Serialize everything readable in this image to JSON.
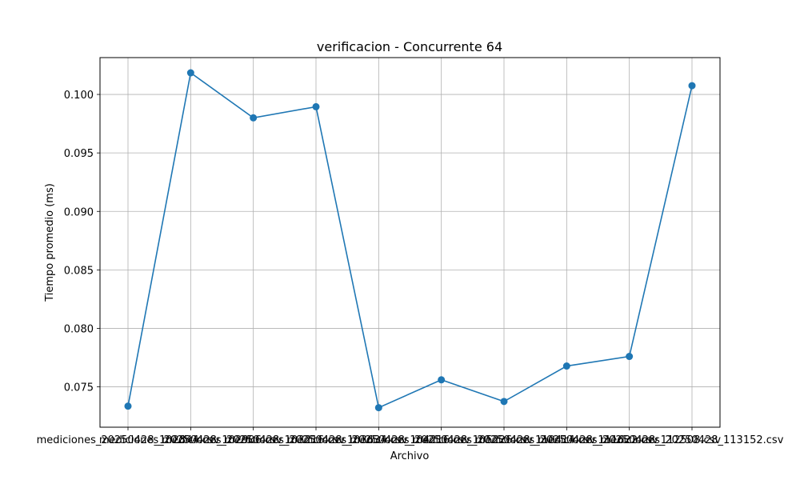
{
  "chart_data": {
    "type": "line",
    "title": "verificacion - Concurrente 64",
    "xlabel": "Archivo",
    "ylabel": "Tiempo promedio (ms)",
    "categories": [
      "mediciones_20250428_102844.csv",
      "mediciones_20250428_102906.csv",
      "mediciones_20250428_103216.csv",
      "mediciones_20250428_103634.csv",
      "mediciones_20250428_104216.csv",
      "mediciones_20250428_105226.csv",
      "mediciones_20250428_110414.csv",
      "mediciones_20250428_111622.csv",
      "mediciones_20250428_112508.csv",
      "mediciones_20250428_113152.csv"
    ],
    "values": [
      0.07335,
      0.10185,
      0.098,
      0.09895,
      0.07322,
      0.0756,
      0.07375,
      0.07678,
      0.0776,
      0.10075
    ],
    "ylim": [
      0.07155,
      0.10315
    ],
    "yticks": [
      0.075,
      0.08,
      0.085,
      0.09,
      0.095,
      0.1
    ],
    "ytick_labels": [
      "0.075",
      "0.080",
      "0.085",
      "0.090",
      "0.095",
      "0.100"
    ],
    "grid": true,
    "line_color": "#1f77b4"
  }
}
